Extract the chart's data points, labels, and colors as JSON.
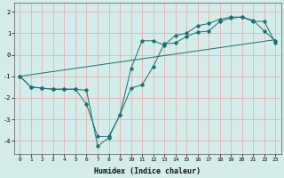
{
  "title": "",
  "xlabel": "Humidex (Indice chaleur)",
  "bg_color": "#d4ecea",
  "grid_color": "#e8b0b0",
  "line_color": "#1a7070",
  "xlim": [
    -0.5,
    23.5
  ],
  "ylim": [
    -4.6,
    2.4
  ],
  "yticks": [
    -4,
    -3,
    -2,
    -1,
    0,
    1,
    2
  ],
  "xticks": [
    0,
    1,
    2,
    3,
    4,
    5,
    6,
    7,
    8,
    9,
    10,
    11,
    12,
    13,
    14,
    15,
    16,
    17,
    18,
    19,
    20,
    21,
    22,
    23
  ],
  "line1_x": [
    0,
    1,
    2,
    3,
    4,
    5,
    6,
    7,
    8,
    9,
    10,
    11,
    12,
    13,
    14,
    15,
    16,
    17,
    18,
    19,
    20,
    21,
    22,
    23
  ],
  "line1_y": [
    -1.0,
    -1.5,
    -1.55,
    -1.6,
    -1.6,
    -1.6,
    -1.65,
    -4.25,
    -3.85,
    -2.8,
    -1.55,
    -1.4,
    -0.55,
    0.5,
    0.55,
    0.85,
    1.05,
    1.1,
    1.55,
    1.7,
    1.75,
    1.6,
    1.1,
    0.65
  ],
  "line2_x": [
    0,
    1,
    2,
    3,
    4,
    5,
    6,
    7,
    8,
    9,
    10,
    11,
    12,
    13,
    14,
    15,
    16,
    17,
    18,
    19,
    20,
    21,
    22,
    23
  ],
  "line2_y": [
    -1.0,
    -1.5,
    -1.55,
    -1.6,
    -1.6,
    -1.6,
    -2.3,
    -3.8,
    -3.8,
    -2.8,
    -0.65,
    0.65,
    0.65,
    0.45,
    0.9,
    1.0,
    1.35,
    1.45,
    1.65,
    1.75,
    1.75,
    1.55,
    1.55,
    0.55
  ],
  "line3_x": [
    0,
    23
  ],
  "line3_y": [
    -1.0,
    0.7
  ],
  "marker_size": 1.8,
  "line_width": 0.7,
  "xlabel_fontsize": 6,
  "tick_fontsize": 4.5
}
